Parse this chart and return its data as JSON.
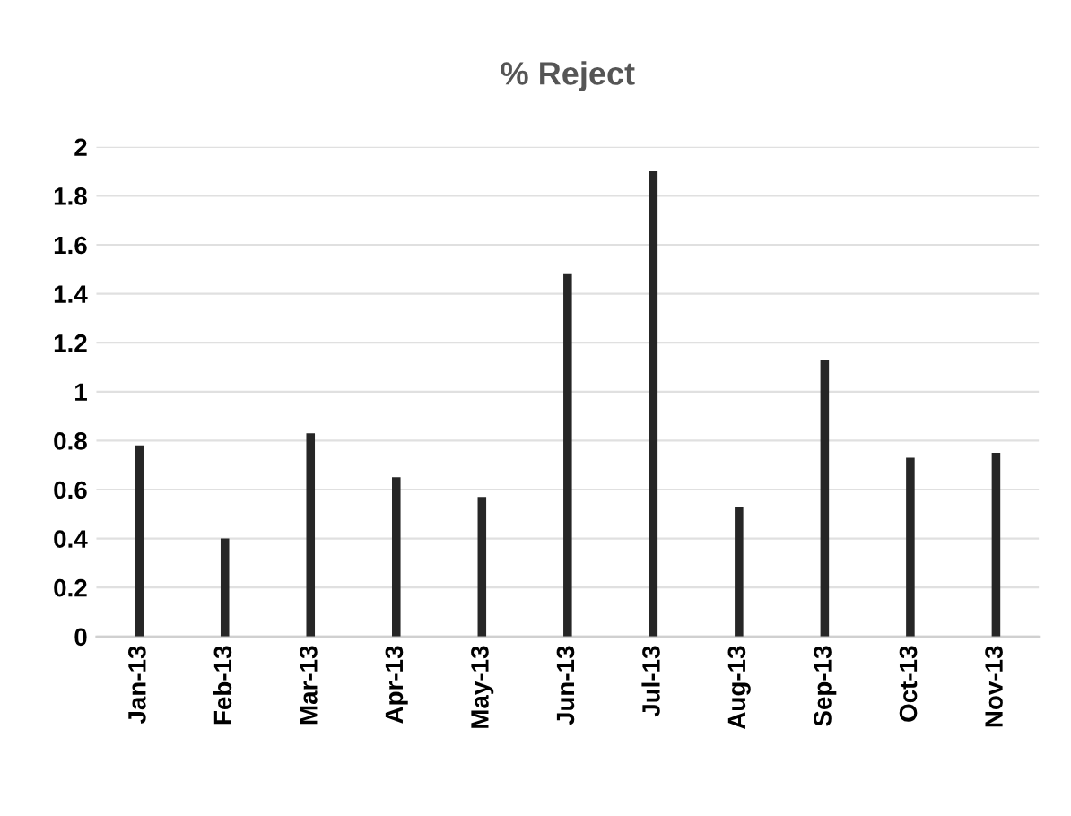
{
  "chart_data": {
    "type": "bar",
    "title": "% Reject",
    "categories": [
      "Jan-13",
      "Feb-13",
      "Mar-13",
      "Apr-13",
      "May-13",
      "Jun-13",
      "Jul-13",
      "Aug-13",
      "Sep-13",
      "Oct-13",
      "Nov-13"
    ],
    "values": [
      0.78,
      0.4,
      0.83,
      0.65,
      0.57,
      1.48,
      1.9,
      0.53,
      1.13,
      0.73,
      0.75
    ],
    "color": "#262626",
    "ylim": [
      0,
      2
    ],
    "yticks": [
      0,
      0.2,
      0.4,
      0.6,
      0.8,
      1,
      1.2,
      1.4,
      1.6,
      1.8,
      2
    ],
    "grid": "y"
  }
}
